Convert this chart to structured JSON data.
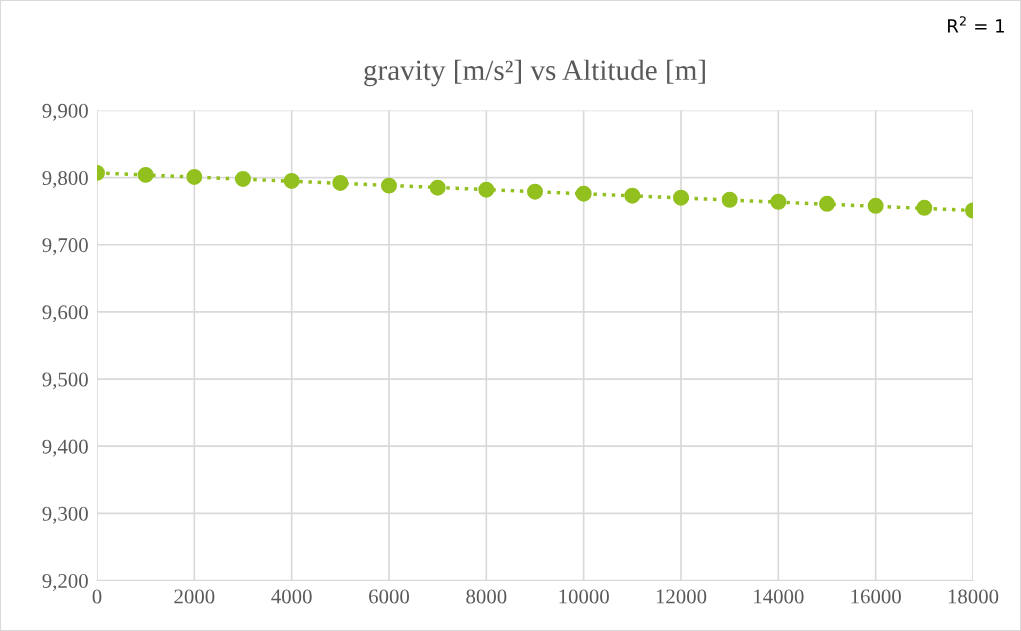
{
  "chart_data": {
    "type": "scatter",
    "title": "gravity [m/s²] vs Altitude [m]",
    "annotations": [
      "R$^{2}$ = 1"
    ],
    "xlim": [
      0,
      18000
    ],
    "xticks": [
      0,
      2000,
      4000,
      6000,
      8000,
      10000,
      12000,
      14000,
      16000,
      18000
    ],
    "ylim": [
      9200,
      9900
    ],
    "yticks": [
      {
        "value": 9200,
        "label": "9,200"
      },
      {
        "value": 9300,
        "label": "9,300"
      },
      {
        "value": 9400,
        "label": "9,400"
      },
      {
        "value": 9500,
        "label": "9,500"
      },
      {
        "value": 9600,
        "label": "9,600"
      },
      {
        "value": 9700,
        "label": "9,700"
      },
      {
        "value": 9800,
        "label": "9,800"
      },
      {
        "value": 9900,
        "label": "9,900"
      }
    ],
    "grid": true,
    "series": [
      {
        "type": "line",
        "color": "#92c01f",
        "line_style": "dotted",
        "marker": "none",
        "x": [
          0,
          18000
        ],
        "values": [
          9807,
          9751
        ]
      },
      {
        "color": "#92c01f",
        "marker": "circle",
        "x": [
          0,
          1000,
          2000,
          3000,
          4000,
          5000,
          6000,
          7000,
          8000,
          9000,
          10000,
          11000,
          12000,
          13000,
          14000,
          15000,
          16000,
          17000,
          18000
        ],
        "values": [
          9807,
          9804,
          9801,
          9798,
          9795,
          9792,
          9788,
          9785,
          9782,
          9779,
          9776,
          9773,
          9770,
          9767,
          9764,
          9761,
          9758,
          9755,
          9751
        ]
      }
    ]
  }
}
